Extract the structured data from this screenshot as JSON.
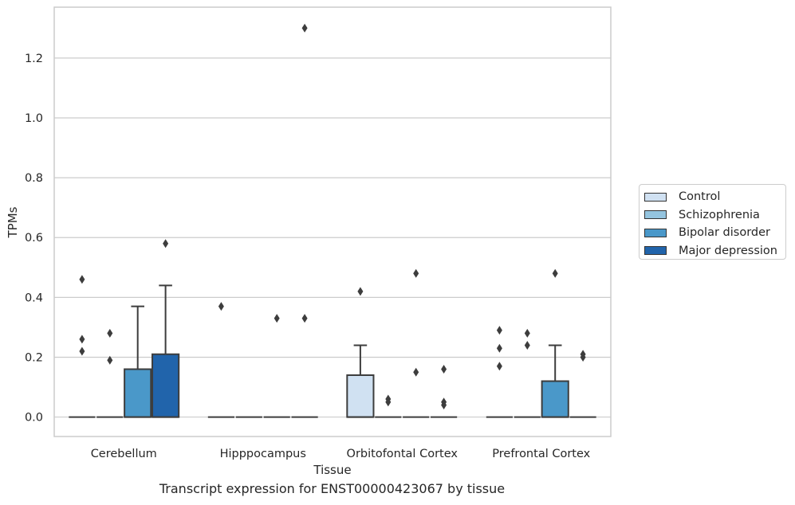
{
  "caption": "Transcript expression for ENST00000423067 by tissue",
  "chart_data": {
    "type": "box",
    "xlabel": "Tissue",
    "ylabel": "TPMs",
    "ylim": [
      -0.065,
      1.37
    ],
    "yticks": [
      "0.0",
      "0.2",
      "0.4",
      "0.6",
      "0.8",
      "1.0",
      "1.2"
    ],
    "categories": [
      "Cerebellum",
      "Hipppocampus",
      "Orbitofontal Cortex",
      "Prefrontal Cortex"
    ],
    "grid": "horizontal",
    "legend_placement": "right",
    "series": [
      {
        "name": "Control",
        "color": "#d0e1f2",
        "boxes": [
          {
            "q1": 0,
            "median": 0,
            "q3": 0,
            "whisker_low": 0,
            "whisker_high": 0,
            "outliers": [
              0.46,
              0.26,
              0.22
            ]
          },
          {
            "q1": 0,
            "median": 0,
            "q3": 0,
            "whisker_low": 0,
            "whisker_high": 0,
            "outliers": [
              0.37
            ]
          },
          {
            "q1": 0,
            "median": 0,
            "q3": 0.14,
            "whisker_low": 0,
            "whisker_high": 0.24,
            "outliers": [
              0.42
            ]
          },
          {
            "q1": 0,
            "median": 0,
            "q3": 0,
            "whisker_low": 0,
            "whisker_high": 0,
            "outliers": [
              0.29,
              0.23,
              0.17
            ]
          }
        ]
      },
      {
        "name": "Schizophrenia",
        "color": "#94c4df",
        "boxes": [
          {
            "q1": 0,
            "median": 0,
            "q3": 0,
            "whisker_low": 0,
            "whisker_high": 0,
            "outliers": [
              0.28,
              0.19
            ]
          },
          {
            "q1": 0,
            "median": 0,
            "q3": 0,
            "whisker_low": 0,
            "whisker_high": 0,
            "outliers": []
          },
          {
            "q1": 0,
            "median": 0,
            "q3": 0,
            "whisker_low": 0,
            "whisker_high": 0,
            "outliers": [
              0.06,
              0.05
            ]
          },
          {
            "q1": 0,
            "median": 0,
            "q3": 0,
            "whisker_low": 0,
            "whisker_high": 0,
            "outliers": [
              0.28,
              0.24
            ]
          }
        ]
      },
      {
        "name": "Bipolar disorder",
        "color": "#4a98c9",
        "boxes": [
          {
            "q1": 0,
            "median": 0,
            "q3": 0.16,
            "whisker_low": 0,
            "whisker_high": 0.37,
            "outliers": []
          },
          {
            "q1": 0,
            "median": 0,
            "q3": 0,
            "whisker_low": 0,
            "whisker_high": 0,
            "outliers": [
              0.33
            ]
          },
          {
            "q1": 0,
            "median": 0,
            "q3": 0,
            "whisker_low": 0,
            "whisker_high": 0,
            "outliers": [
              0.48,
              0.15
            ]
          },
          {
            "q1": 0,
            "median": 0,
            "q3": 0.12,
            "whisker_low": 0,
            "whisker_high": 0.24,
            "outliers": [
              0.48
            ]
          }
        ]
      },
      {
        "name": "Major depression",
        "color": "#2164ab",
        "boxes": [
          {
            "q1": 0,
            "median": 0,
            "q3": 0.21,
            "whisker_low": 0,
            "whisker_high": 0.44,
            "outliers": [
              0.58
            ]
          },
          {
            "q1": 0,
            "median": 0,
            "q3": 0,
            "whisker_low": 0,
            "whisker_high": 0,
            "outliers": [
              1.3,
              0.33
            ]
          },
          {
            "q1": 0,
            "median": 0,
            "q3": 0,
            "whisker_low": 0,
            "whisker_high": 0,
            "outliers": [
              0.16,
              0.05,
              0.04
            ]
          },
          {
            "q1": 0,
            "median": 0,
            "q3": 0,
            "whisker_low": 0,
            "whisker_high": 0,
            "outliers": [
              0.21,
              0.2
            ]
          }
        ]
      }
    ]
  }
}
